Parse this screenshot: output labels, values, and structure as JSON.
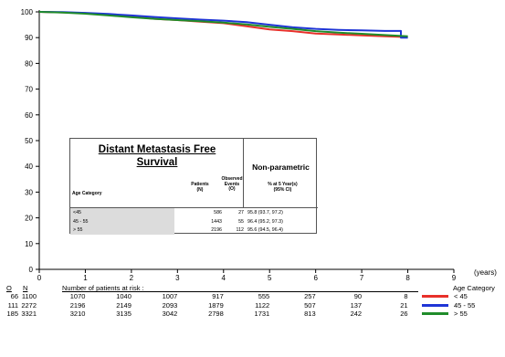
{
  "chart_data": {
    "type": "line",
    "title": "",
    "xlabel": "",
    "x_unit_label": "(years)",
    "ylabel": "",
    "xlim": [
      0,
      9
    ],
    "ylim": [
      0,
      100
    ],
    "x_ticks": [
      "0",
      "1",
      "2",
      "3",
      "4",
      "5",
      "6",
      "7",
      "8",
      "9"
    ],
    "y_ticks": [
      "0",
      "10",
      "20",
      "30",
      "40",
      "50",
      "60",
      "70",
      "80",
      "90",
      "100"
    ],
    "grid": false,
    "series": [
      {
        "name": "< 45",
        "color": "#e8302a",
        "x": [
          0,
          0.5,
          1,
          1.5,
          2,
          2.5,
          3,
          3.5,
          4,
          4.5,
          5,
          5.5,
          6,
          6.5,
          7,
          7.5,
          8
        ],
        "y": [
          100,
          99.8,
          99.5,
          98.8,
          98.2,
          97.3,
          96.8,
          96.2,
          95.6,
          94.4,
          93.2,
          92.5,
          91.6,
          91.2,
          90.9,
          90.5,
          90.2
        ]
      },
      {
        "name": "45 - 55",
        "color": "#1f35d6",
        "x": [
          0,
          0.5,
          1,
          1.5,
          2,
          2.5,
          3,
          3.5,
          4,
          4.5,
          5,
          5.5,
          6,
          6.5,
          7,
          7.5,
          7.85,
          7.85,
          8
        ],
        "y": [
          100,
          99.9,
          99.6,
          99.2,
          98.6,
          98.0,
          97.5,
          97.0,
          96.6,
          96.0,
          95.0,
          94.0,
          93.4,
          93.0,
          92.8,
          92.6,
          92.6,
          90.0,
          90.0
        ]
      },
      {
        "name": "> 55",
        "color": "#1f8c2a",
        "x": [
          0,
          0.5,
          1,
          1.5,
          2,
          2.5,
          3,
          3.5,
          4,
          4.5,
          5,
          5.5,
          6,
          6.5,
          7,
          7.5,
          8
        ],
        "y": [
          100,
          99.7,
          99.3,
          98.6,
          97.9,
          97.3,
          96.8,
          96.4,
          95.8,
          95.1,
          94.2,
          93.4,
          92.5,
          91.9,
          91.5,
          91.0,
          90.5
        ]
      }
    ]
  },
  "summary_table": {
    "title_line1": "Distant Metastasis Free",
    "title_line2": "Survival",
    "nonparametric_title": "Non-parametric",
    "col_age": "Age Category",
    "col_patients_1": "Patients",
    "col_patients_2": "(N)",
    "col_events_1": "Observed",
    "col_events_2": "Events",
    "col_events_3": "(O)",
    "col_pct_1": "% at 5 Year(s)",
    "col_pct_2": "(95% CI)",
    "rows": [
      {
        "category": "<45",
        "patients": "586",
        "events": "27",
        "pct": "95.8 (93.7, 97.2)"
      },
      {
        "category": "45 - 55",
        "patients": "1443",
        "events": "55",
        "pct": "96.4 (95.2, 97.3)"
      },
      {
        "category": "> 55",
        "patients": "2196",
        "events": "112",
        "pct": "95.6 (94.5, 96.4)"
      }
    ]
  },
  "risk_table": {
    "header_o": "O",
    "header_n": "N",
    "caption": "Number of patients at risk :",
    "legend_title": "Age Category",
    "rows": [
      {
        "o": "66",
        "n": "1100",
        "values": [
          "1070",
          "1040",
          "1007",
          "917",
          "555",
          "257",
          "90",
          "8"
        ],
        "label": "< 45",
        "color": "#e8302a"
      },
      {
        "o": "111",
        "n": "2272",
        "values": [
          "2196",
          "2149",
          "2093",
          "1879",
          "1122",
          "507",
          "137",
          "21"
        ],
        "label": "45 - 55",
        "color": "#1f35d6"
      },
      {
        "o": "185",
        "n": "3321",
        "values": [
          "3210",
          "3135",
          "3042",
          "2798",
          "1731",
          "813",
          "242",
          "26"
        ],
        "label": "> 55",
        "color": "#1f8c2a"
      }
    ]
  }
}
